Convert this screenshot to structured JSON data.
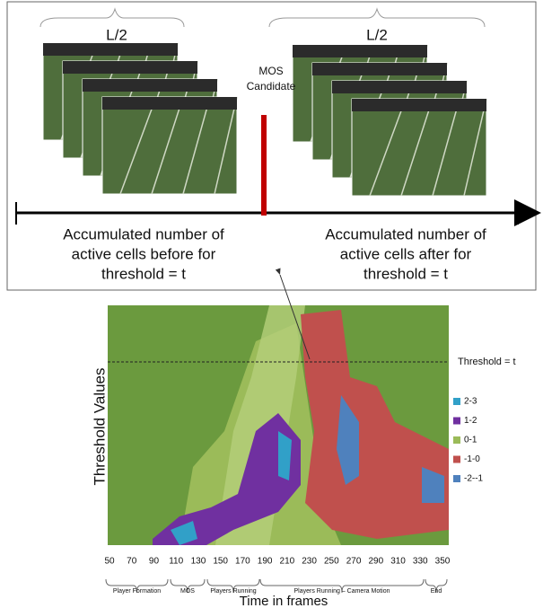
{
  "top": {
    "frame_groups": [
      {
        "label": "L/2"
      },
      {
        "label": "L/2"
      }
    ],
    "mos_candidate": [
      "MOS",
      "Candidate"
    ],
    "captions": [
      [
        "Accumulated number of",
        "active cells before for",
        "threshold = t"
      ],
      [
        "Accumulated number of",
        "active cells after for",
        "threshold = t"
      ]
    ]
  },
  "chart": {
    "y_label": "Threshold Values",
    "threshold_label": "Threshold = t",
    "legend": [
      {
        "label": "2-3",
        "color": "#31a0c8"
      },
      {
        "label": "1-2",
        "color": "#7030a0"
      },
      {
        "label": "0-1",
        "color": "#9bbb59"
      },
      {
        "label": "-1-0",
        "color": "#c0504d"
      },
      {
        "label": "-2--1",
        "color": "#4f81bd"
      }
    ],
    "x_ticks": [
      50,
      70,
      90,
      110,
      130,
      150,
      170,
      190,
      210,
      230,
      250,
      270,
      290,
      310,
      330,
      350
    ],
    "phases": [
      "Player Formation",
      "MOS",
      "Players Running",
      "Players Running – Camera Motion",
      "End"
    ],
    "x_label": "Time in frames"
  }
}
